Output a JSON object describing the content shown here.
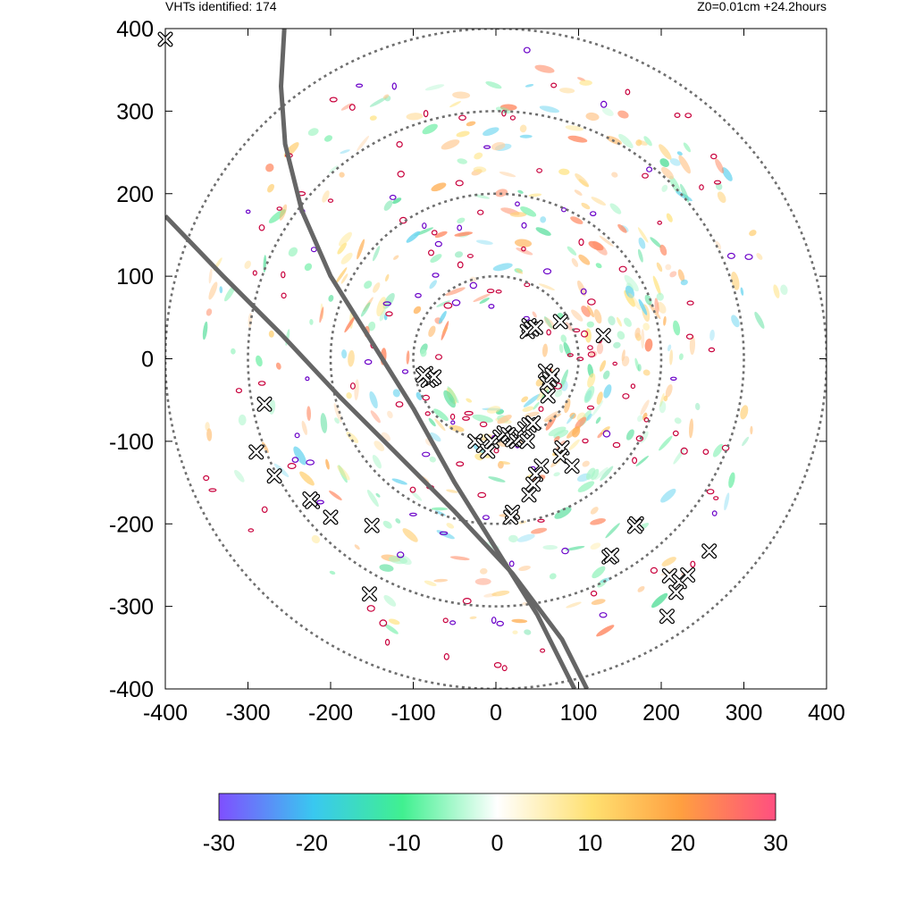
{
  "header": {
    "vht_count_label": "VHTs identified: 174",
    "run_info": "Z0=0.01cm  +24.2hours"
  },
  "chart_data": {
    "type": "scatter",
    "title": "",
    "xlabel": "",
    "ylabel": "",
    "xlim": [
      -400,
      400
    ],
    "ylim": [
      -400,
      400
    ],
    "x_ticks": [
      -400,
      -300,
      -200,
      -100,
      0,
      100,
      200,
      300,
      400
    ],
    "y_ticks": [
      -400,
      -300,
      -200,
      -100,
      0,
      100,
      200,
      300,
      400
    ],
    "grid": false,
    "range_rings": [
      100,
      200,
      300,
      400
    ],
    "background_field": {
      "type": "heatmap",
      "colormap": [
        "#7f4fff",
        "#39c8f0",
        "#40f090",
        "#ffffff",
        "#ffe070",
        "#ff9f40",
        "#ff4f80"
      ],
      "colorbar_range": [
        -30,
        30
      ],
      "colorbar_ticks": [
        -30,
        -20,
        -10,
        0,
        10,
        20,
        30
      ]
    },
    "tracks": [
      {
        "points": [
          [
            -256,
            400
          ],
          [
            -260,
            330
          ],
          [
            -255,
            260
          ],
          [
            -235,
            180
          ],
          [
            -200,
            100
          ],
          [
            -150,
            20
          ],
          [
            -100,
            -60
          ],
          [
            -50,
            -150
          ],
          [
            0,
            -230
          ],
          [
            50,
            -310
          ],
          [
            95,
            -400
          ]
        ]
      },
      {
        "points": [
          [
            -400,
            173
          ],
          [
            -330,
            100
          ],
          [
            -260,
            30
          ],
          [
            -190,
            -45
          ],
          [
            -120,
            -115
          ],
          [
            -50,
            -185
          ],
          [
            20,
            -260
          ],
          [
            80,
            -340
          ],
          [
            110,
            -400
          ]
        ]
      }
    ],
    "vht_markers": [
      [
        -400,
        387
      ],
      [
        40,
        40
      ],
      [
        43,
        36
      ],
      [
        38,
        33
      ],
      [
        48,
        38
      ],
      [
        78,
        45
      ],
      [
        130,
        28
      ],
      [
        -85,
        -18
      ],
      [
        -78,
        -24
      ],
      [
        -82,
        -26
      ],
      [
        -75,
        -22
      ],
      [
        -88,
        -20
      ],
      [
        60,
        -15
      ],
      [
        65,
        -25
      ],
      [
        62,
        -30
      ],
      [
        68,
        -20
      ],
      [
        63,
        -45
      ],
      [
        -25,
        -100
      ],
      [
        -15,
        -105
      ],
      [
        -10,
        -112
      ],
      [
        -5,
        -100
      ],
      [
        5,
        -95
      ],
      [
        10,
        -90
      ],
      [
        15,
        -92
      ],
      [
        20,
        -98
      ],
      [
        25,
        -100
      ],
      [
        30,
        -95
      ],
      [
        35,
        -85
      ],
      [
        40,
        -80
      ],
      [
        45,
        -78
      ],
      [
        38,
        -100
      ],
      [
        55,
        -130
      ],
      [
        48,
        -140
      ],
      [
        45,
        -152
      ],
      [
        40,
        -165
      ],
      [
        20,
        -186
      ],
      [
        18,
        -192
      ],
      [
        80,
        -108
      ],
      [
        78,
        -118
      ],
      [
        92,
        -130
      ],
      [
        -280,
        -55
      ],
      [
        -290,
        -113
      ],
      [
        -268,
        -142
      ],
      [
        -222,
        -173
      ],
      [
        -225,
        -170
      ],
      [
        -200,
        -192
      ],
      [
        -150,
        -202
      ],
      [
        -153,
        -285
      ],
      [
        137,
        -240
      ],
      [
        140,
        -238
      ],
      [
        170,
        -200
      ],
      [
        168,
        -203
      ],
      [
        210,
        -263
      ],
      [
        222,
        -270
      ],
      [
        218,
        -283
      ],
      [
        232,
        -262
      ],
      [
        258,
        -233
      ],
      [
        207,
        -312
      ]
    ]
  }
}
